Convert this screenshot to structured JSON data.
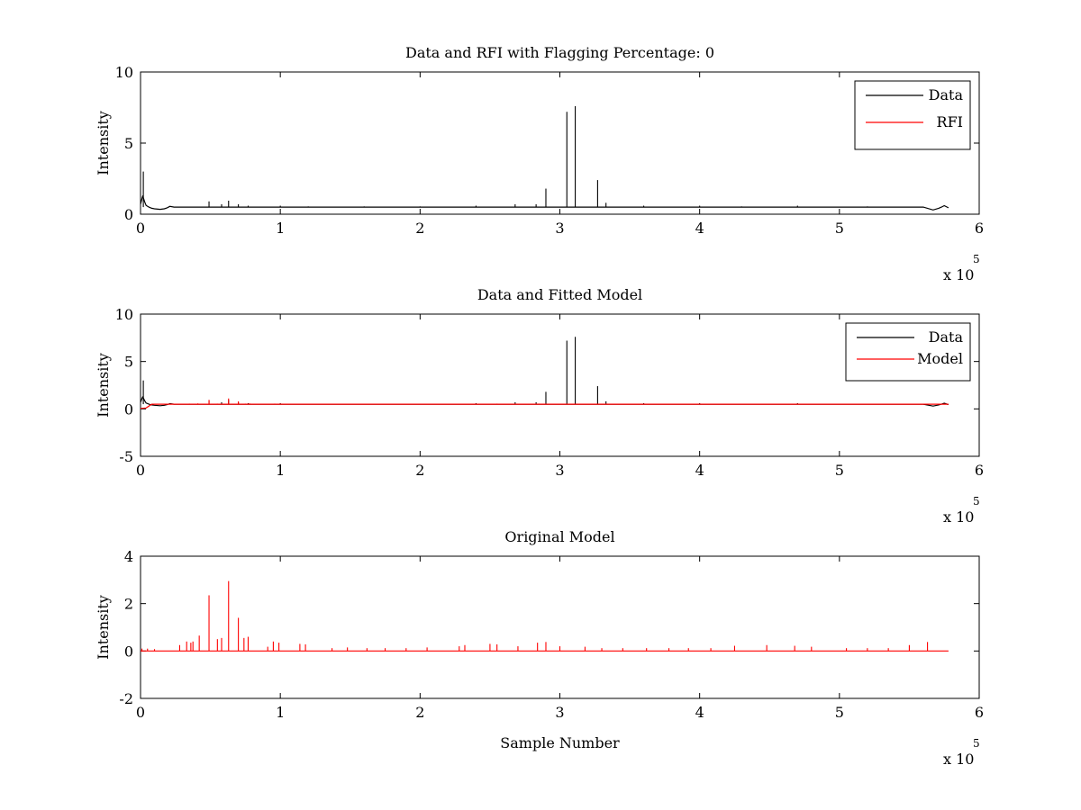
{
  "chart_data": [
    {
      "type": "line",
      "title": "Data and RFI with Flagging Percentage: 0",
      "xlabel": "",
      "ylabel": "Intensity",
      "xlim": [
        0,
        600000
      ],
      "ylim": [
        0,
        10
      ],
      "x_ticks": [
        0,
        1,
        2,
        3,
        4,
        5,
        6
      ],
      "y_ticks": [
        0,
        5,
        10
      ],
      "x_multiplier": "x 10",
      "x_multiplier_exp": "5",
      "grid": false,
      "legend_position": "top-right",
      "legend": [
        "Data",
        "RFI"
      ],
      "series": [
        {
          "name": "Data",
          "color": "#000000",
          "baseline": 0.5,
          "x": [
            0,
            500,
            1000,
            1500,
            2000,
            3000,
            4000,
            6000,
            8000,
            10000,
            14000,
            17000,
            19000,
            21000,
            24000,
            30000,
            100000,
            200000,
            300000,
            400000,
            500000,
            560000,
            567000,
            571000,
            573000,
            575000,
            578000
          ],
          "y": [
            0.7,
            0.9,
            1.1,
            1.25,
            1.15,
            0.85,
            0.62,
            0.5,
            0.42,
            0.38,
            0.34,
            0.38,
            0.45,
            0.55,
            0.5,
            0.5,
            0.5,
            0.5,
            0.5,
            0.5,
            0.5,
            0.5,
            0.3,
            0.42,
            0.5,
            0.6,
            0.45
          ],
          "spikes_x": [
            2000,
            49000,
            58000,
            63000,
            70000,
            77000,
            100000,
            120000,
            160000,
            200000,
            240000,
            268000,
            283000,
            290000,
            305000,
            311000,
            327000,
            333000,
            360000,
            400000,
            430000,
            470000,
            520000
          ],
          "spikes_y": [
            3.0,
            0.9,
            0.7,
            0.95,
            0.7,
            0.6,
            0.6,
            0.55,
            0.55,
            0.55,
            0.6,
            0.7,
            0.7,
            1.8,
            7.2,
            7.6,
            2.4,
            0.8,
            0.6,
            0.6,
            0.55,
            0.6,
            0.55
          ]
        },
        {
          "name": "RFI",
          "color": "#ff0000",
          "x": [],
          "y": []
        }
      ]
    },
    {
      "type": "line",
      "title": "Data and Fitted Model",
      "xlabel": "",
      "ylabel": "Intensity",
      "xlim": [
        0,
        600000
      ],
      "ylim": [
        -5,
        10
      ],
      "x_ticks": [
        0,
        1,
        2,
        3,
        4,
        5,
        6
      ],
      "y_ticks": [
        -5,
        0,
        5,
        10
      ],
      "x_multiplier": "x 10",
      "x_multiplier_exp": "5",
      "grid": false,
      "legend_position": "top-right",
      "legend": [
        "Data",
        "Model"
      ],
      "series": [
        {
          "name": "Data",
          "color": "#000000",
          "baseline": 0.5,
          "x": [
            0,
            500,
            1000,
            1500,
            2000,
            3000,
            4000,
            6000,
            8000,
            10000,
            14000,
            17000,
            19000,
            21000,
            24000,
            30000,
            100000,
            200000,
            300000,
            400000,
            500000,
            560000,
            567000,
            571000,
            573000,
            575000,
            578000
          ],
          "y": [
            0.7,
            0.9,
            1.1,
            1.25,
            1.15,
            0.85,
            0.62,
            0.5,
            0.42,
            0.38,
            0.34,
            0.38,
            0.45,
            0.55,
            0.5,
            0.5,
            0.5,
            0.5,
            0.5,
            0.5,
            0.5,
            0.5,
            0.3,
            0.42,
            0.5,
            0.6,
            0.45
          ],
          "spikes_x": [
            2000,
            49000,
            58000,
            63000,
            70000,
            77000,
            100000,
            120000,
            160000,
            200000,
            240000,
            268000,
            283000,
            290000,
            305000,
            311000,
            327000,
            333000,
            360000,
            400000,
            430000,
            470000,
            520000
          ],
          "spikes_y": [
            3.0,
            0.9,
            0.7,
            0.95,
            0.7,
            0.6,
            0.6,
            0.55,
            0.55,
            0.55,
            0.6,
            0.7,
            0.7,
            1.8,
            7.2,
            7.6,
            2.4,
            0.8,
            0.6,
            0.6,
            0.55,
            0.6,
            0.55
          ]
        },
        {
          "name": "Model",
          "color": "#ff0000",
          "baseline": 0.5,
          "x": [
            0,
            4000,
            8000,
            578000
          ],
          "y": [
            0.05,
            0.1,
            0.5,
            0.5
          ],
          "spikes_x": [
            30000,
            35000,
            41000,
            49000,
            55000,
            58000,
            63000,
            70000,
            75000,
            78000,
            96000,
            100000,
            115000,
            120000,
            140000,
            160000,
            180000,
            200000,
            230000,
            255000,
            285000,
            300000,
            330000,
            360000,
            400000,
            430000,
            470000,
            500000,
            530000,
            563000
          ],
          "spikes_y": [
            0.55,
            0.56,
            0.58,
            0.95,
            0.56,
            0.56,
            1.1,
            0.8,
            0.56,
            0.58,
            0.56,
            0.56,
            0.55,
            0.55,
            0.54,
            0.54,
            0.54,
            0.54,
            0.55,
            0.56,
            0.56,
            0.55,
            0.54,
            0.54,
            0.54,
            0.55,
            0.55,
            0.54,
            0.54,
            0.55
          ]
        }
      ]
    },
    {
      "type": "line",
      "title": "Original Model",
      "xlabel": "Sample Number",
      "ylabel": "Intensity",
      "xlim": [
        0,
        600000
      ],
      "ylim": [
        -2,
        4
      ],
      "x_ticks": [
        0,
        1,
        2,
        3,
        4,
        5,
        6
      ],
      "y_ticks": [
        -2,
        0,
        2,
        4
      ],
      "x_multiplier": "x 10",
      "x_multiplier_exp": "5",
      "grid": false,
      "legend_position": "none",
      "legend": [],
      "series": [
        {
          "name": "",
          "color": "#ff0000",
          "baseline": 0,
          "x": [
            0,
            578000
          ],
          "y": [
            0,
            0
          ],
          "spikes_x": [
            1000,
            5000,
            10000,
            28000,
            33000,
            36000,
            37500,
            42000,
            49000,
            55000,
            58000,
            63000,
            70000,
            74000,
            77000,
            91000,
            95000,
            99000,
            114000,
            118000,
            137000,
            148000,
            162000,
            175000,
            190000,
            205000,
            228000,
            232000,
            250000,
            255000,
            270000,
            284000,
            290000,
            300000,
            318000,
            330000,
            345000,
            362000,
            378000,
            392000,
            408000,
            425000,
            448000,
            468000,
            480000,
            505000,
            520000,
            535000,
            550000,
            563000
          ],
          "spikes_y": [
            0.1,
            0.1,
            0.08,
            0.25,
            0.4,
            0.35,
            0.4,
            0.65,
            2.35,
            0.5,
            0.55,
            2.95,
            1.4,
            0.55,
            0.6,
            0.18,
            0.4,
            0.35,
            0.3,
            0.28,
            0.12,
            0.15,
            0.12,
            0.12,
            0.12,
            0.15,
            0.2,
            0.25,
            0.3,
            0.28,
            0.2,
            0.35,
            0.38,
            0.2,
            0.18,
            0.12,
            0.12,
            0.12,
            0.12,
            0.12,
            0.12,
            0.22,
            0.25,
            0.22,
            0.18,
            0.12,
            0.12,
            0.12,
            0.25,
            0.38
          ]
        }
      ]
    }
  ]
}
